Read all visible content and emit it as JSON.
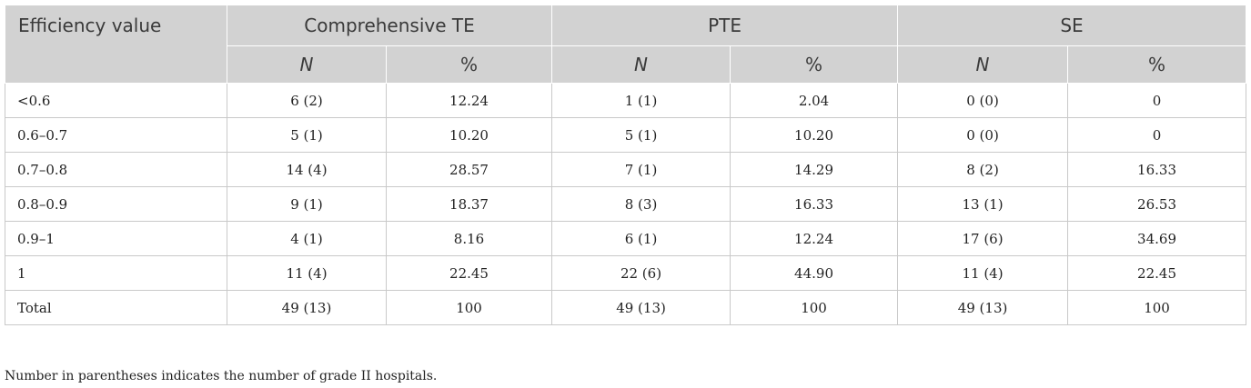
{
  "table": {
    "header": {
      "first_col": "Efficiency value",
      "groups": [
        "Comprehensive TE",
        "PTE",
        "SE"
      ],
      "sub": [
        "N",
        "%",
        "N",
        "%",
        "N",
        "%"
      ]
    },
    "rows": [
      {
        "label": "<0.6",
        "cells": [
          "6 (2)",
          "12.24",
          "1 (1)",
          "2.04",
          "0 (0)",
          "0"
        ]
      },
      {
        "label": "0.6–0.7",
        "cells": [
          "5 (1)",
          "10.20",
          "5 (1)",
          "10.20",
          "0 (0)",
          "0"
        ]
      },
      {
        "label": "0.7–0.8",
        "cells": [
          "14 (4)",
          "28.57",
          "7 (1)",
          "14.29",
          "8 (2)",
          "16.33"
        ]
      },
      {
        "label": "0.8–0.9",
        "cells": [
          "9 (1)",
          "18.37",
          "8 (3)",
          "16.33",
          "13 (1)",
          "26.53"
        ]
      },
      {
        "label": "0.9–1",
        "cells": [
          "4 (1)",
          "8.16",
          "6 (1)",
          "12.24",
          "17 (6)",
          "34.69"
        ]
      },
      {
        "label": "1",
        "cells": [
          "11 (4)",
          "22.45",
          "22 (6)",
          "44.90",
          "11 (4)",
          "22.45"
        ]
      },
      {
        "label": "Total",
        "cells": [
          "49 (13)",
          "100",
          "49 (13)",
          "100",
          "49 (13)",
          "100"
        ]
      }
    ]
  },
  "footnote": "Number in parentheses indicates the number of grade II hospitals."
}
